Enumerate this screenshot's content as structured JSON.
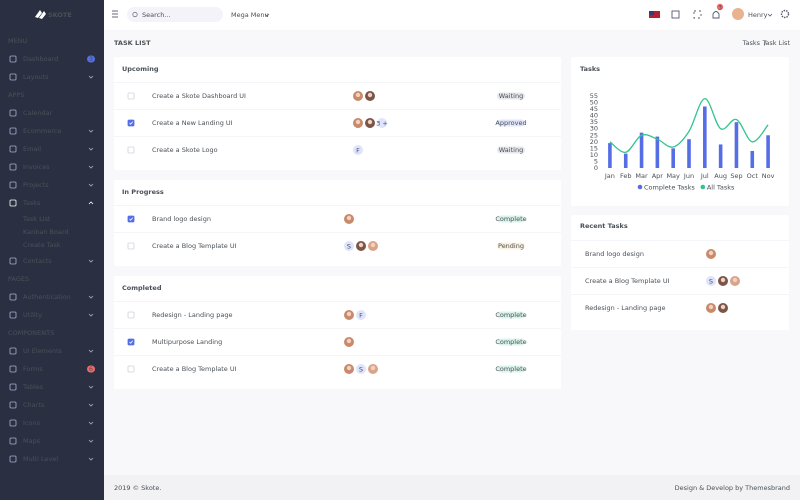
{
  "sidebar": {
    "logo": "SKOTE",
    "sections": [
      {
        "title": "MENU",
        "items": [
          {
            "label": "Dashboard",
            "badge": "3",
            "badge_color": "#556ee6"
          },
          {
            "label": "Layouts",
            "has_submenu": true
          }
        ]
      },
      {
        "title": "APPS",
        "items": [
          {
            "label": "Calendar"
          },
          {
            "label": "Ecommerce",
            "has_submenu": true
          },
          {
            "label": "Email",
            "has_submenu": true
          },
          {
            "label": "Invoices",
            "has_submenu": true
          },
          {
            "label": "Projects",
            "has_submenu": true
          },
          {
            "label": "Tasks",
            "has_submenu": true,
            "active": true,
            "children": [
              {
                "label": "Task List",
                "active": true
              },
              {
                "label": "Kanban Board"
              },
              {
                "label": "Create Task"
              }
            ]
          },
          {
            "label": "Contacts",
            "has_submenu": true
          }
        ]
      },
      {
        "title": "PAGES",
        "items": [
          {
            "label": "Authentication",
            "has_submenu": true
          },
          {
            "label": "Utility",
            "has_submenu": true
          }
        ]
      },
      {
        "title": "COMPONENTS",
        "items": [
          {
            "label": "UI Elements",
            "has_submenu": true
          },
          {
            "label": "Forms",
            "badge": "6",
            "badge_color": "#f46a6a"
          },
          {
            "label": "Tables",
            "has_submenu": true
          },
          {
            "label": "Charts",
            "has_submenu": true
          },
          {
            "label": "Icons",
            "has_submenu": true
          },
          {
            "label": "Maps",
            "has_submenu": true
          },
          {
            "label": "Multi Level",
            "has_submenu": true
          }
        ]
      }
    ]
  },
  "topbar": {
    "search": "Search...",
    "mega_menu": "Mega Menu",
    "notifications": "3",
    "user": "Henry"
  },
  "page": {
    "title": "TASK LIST",
    "breadcrumb": [
      "Tasks",
      "Task List"
    ]
  },
  "status_colors": {
    "Waiting": "#74788d",
    "Approved": "#556ee6",
    "Complete": "#34c38f",
    "Pending": "#f1b44c"
  },
  "task_groups": [
    {
      "title": "Upcoming",
      "tasks": [
        {
          "name": "Create a Skote Dashboard UI",
          "checked": false,
          "avatars": [
            null,
            null
          ],
          "status": "Waiting"
        },
        {
          "name": "Create a New Landing UI",
          "checked": true,
          "avatars": [
            null,
            null,
            "3 +"
          ],
          "status": "Approved"
        },
        {
          "name": "Create a Skote Logo",
          "checked": false,
          "avatars": [
            "F"
          ],
          "status": "Waiting"
        }
      ]
    },
    {
      "title": "In Progress",
      "tasks": [
        {
          "name": "Brand logo design",
          "checked": true,
          "avatars": [
            null
          ],
          "status": "Complete"
        },
        {
          "name": "Create a Blog Template UI",
          "checked": false,
          "avatars": [
            "S",
            null,
            null
          ],
          "status": "Pending"
        }
      ]
    },
    {
      "title": "Completed",
      "tasks": [
        {
          "name": "Redesign - Landing page",
          "checked": false,
          "avatars": [
            null,
            "F"
          ],
          "status": "Complete"
        },
        {
          "name": "Multipurpose Landing",
          "checked": true,
          "avatars": [
            null
          ],
          "status": "Complete"
        },
        {
          "name": "Create a Blog Template UI",
          "checked": false,
          "avatars": [
            null,
            "S",
            null
          ],
          "status": "Complete"
        }
      ]
    }
  ],
  "chart_data": {
    "type": "bar-line",
    "title": "Tasks",
    "categories": [
      "Jan",
      "Feb",
      "Mar",
      "Apr",
      "May",
      "Jun",
      "Jul",
      "Aug",
      "Sep",
      "Oct",
      "Nov"
    ],
    "series": [
      {
        "name": "Complete Tasks",
        "type": "bar",
        "color": "#556ee6",
        "values": [
          19,
          11,
          27,
          24,
          15,
          22,
          47,
          18,
          35,
          13,
          25
        ]
      },
      {
        "name": "All Tasks",
        "type": "line",
        "color": "#34c38f",
        "values": [
          20,
          12,
          25,
          22,
          16,
          28,
          53,
          30,
          37,
          20,
          33
        ]
      }
    ],
    "ylim": [
      0,
      55
    ],
    "yticks": [
      0,
      5,
      10,
      15,
      20,
      25,
      30,
      35,
      40,
      45,
      50,
      55
    ],
    "grid": false
  },
  "recent_tasks": {
    "title": "Recent Tasks",
    "tasks": [
      {
        "name": "Brand logo design",
        "avatars": [
          null
        ]
      },
      {
        "name": "Create a Blog Template UI",
        "avatars": [
          "S",
          null,
          null
        ]
      },
      {
        "name": "Redesign - Landing page",
        "avatars": [
          null,
          null
        ]
      }
    ]
  },
  "footer": {
    "left": "2019 © Skote.",
    "right": "Design & Develop by Themesbrand"
  }
}
